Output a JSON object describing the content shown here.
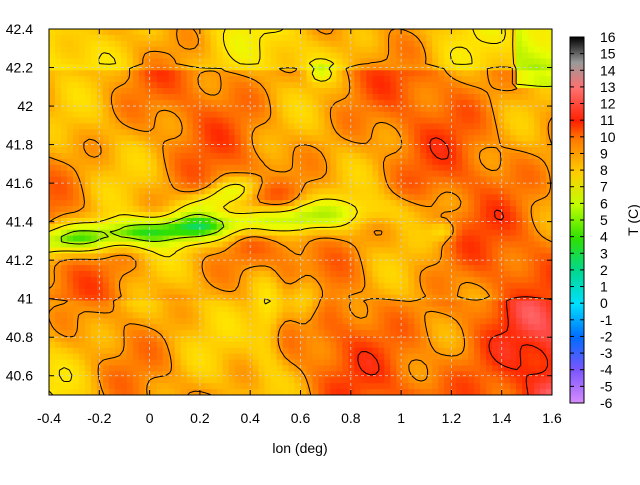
{
  "chart_data": {
    "type": "heatmap",
    "title": "",
    "xlabel": "lon (deg)",
    "ylabel": "",
    "colorbar_label": "T (C)",
    "xlim": [
      -0.4,
      1.6
    ],
    "ylim": [
      40.5,
      42.4
    ],
    "xticks": [
      -0.4,
      -0.2,
      0,
      0.2,
      0.4,
      0.6,
      0.8,
      1,
      1.2,
      1.4,
      1.6
    ],
    "yticks": [
      40.6,
      40.8,
      41,
      41.2,
      41.4,
      41.6,
      41.8,
      42,
      42.2,
      42.4
    ],
    "colorbar_ticks": [
      16,
      15,
      14,
      13,
      12,
      11,
      10,
      9,
      8,
      7,
      6,
      5,
      4,
      3,
      2,
      1,
      0,
      -1,
      -2,
      -3,
      -4,
      -5,
      -6
    ],
    "color_range": [
      -6,
      16
    ],
    "grid": true,
    "contour_lines": true,
    "approximate_field_regions": [
      {
        "x": [
          0.45,
          0.75
        ],
        "y": [
          40.5,
          42.4
        ],
        "value": 6
      },
      {
        "x": [
          -0.4,
          0.35
        ],
        "y": [
          41.1,
          41.45
        ],
        "value": 3
      },
      {
        "x": [
          1.0,
          1.6
        ],
        "y": [
          40.5,
          40.9
        ],
        "value": 10
      },
      {
        "x": [
          1.2,
          1.6
        ],
        "y": [
          41.5,
          41.9
        ],
        "value": 9
      }
    ]
  }
}
